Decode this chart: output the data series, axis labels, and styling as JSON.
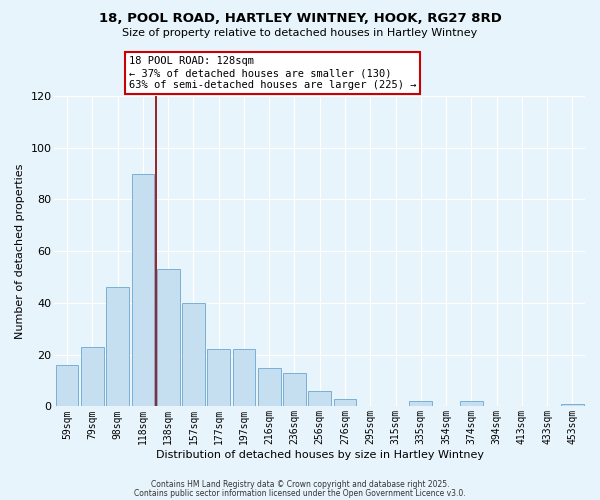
{
  "title": "18, POOL ROAD, HARTLEY WINTNEY, HOOK, RG27 8RD",
  "subtitle": "Size of property relative to detached houses in Hartley Wintney",
  "xlabel": "Distribution of detached houses by size in Hartley Wintney",
  "ylabel": "Number of detached properties",
  "bar_labels": [
    "59sqm",
    "79sqm",
    "98sqm",
    "118sqm",
    "138sqm",
    "157sqm",
    "177sqm",
    "197sqm",
    "216sqm",
    "236sqm",
    "256sqm",
    "276sqm",
    "295sqm",
    "315sqm",
    "335sqm",
    "354sqm",
    "374sqm",
    "394sqm",
    "413sqm",
    "433sqm",
    "453sqm"
  ],
  "bar_values": [
    16,
    23,
    46,
    90,
    53,
    40,
    22,
    22,
    15,
    13,
    6,
    3,
    0,
    0,
    2,
    0,
    2,
    0,
    0,
    0,
    1
  ],
  "bar_color": "#c6dff0",
  "bar_edge_color": "#7ab0d4",
  "vline_x": 3.5,
  "vline_color": "#8b0000",
  "ylim": [
    0,
    120
  ],
  "yticks": [
    0,
    20,
    40,
    60,
    80,
    100,
    120
  ],
  "annotation_title": "18 POOL ROAD: 128sqm",
  "annotation_line1": "← 37% of detached houses are smaller (130)",
  "annotation_line2": "63% of semi-detached houses are larger (225) →",
  "annotation_box_facecolor": "#ffffff",
  "annotation_box_edgecolor": "#cc0000",
  "bg_color": "#e8f4fb",
  "grid_color": "#ffffff",
  "footer1": "Contains HM Land Registry data © Crown copyright and database right 2025.",
  "footer2": "Contains public sector information licensed under the Open Government Licence v3.0."
}
